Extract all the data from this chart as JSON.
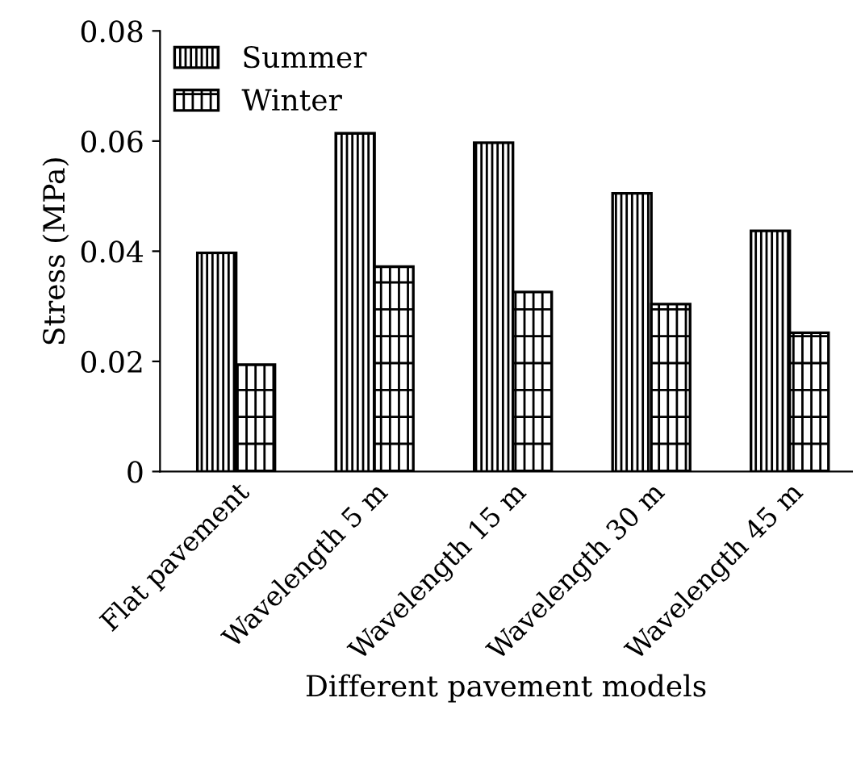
{
  "chart_data": {
    "type": "bar",
    "xlabel": "Different pavement models",
    "ylabel": "Stress (MPa)",
    "categories": [
      "Flat pavement",
      "Wavelength 5 m",
      "Wavelength 15 m",
      "Wavelength 30 m",
      "Wavelength 45 m"
    ],
    "series": [
      {
        "name": "Summer",
        "values": [
          0.0397,
          0.0614,
          0.0597,
          0.0505,
          0.0437
        ]
      },
      {
        "name": "Winter",
        "values": [
          0.0194,
          0.0372,
          0.0326,
          0.0304,
          0.0252
        ]
      }
    ],
    "ylim": [
      0,
      0.08
    ],
    "yticks": [
      {
        "value": 0,
        "label": "0"
      },
      0.02,
      0.04,
      0.06,
      0.08
    ],
    "grid": false,
    "legend": "top left"
  }
}
